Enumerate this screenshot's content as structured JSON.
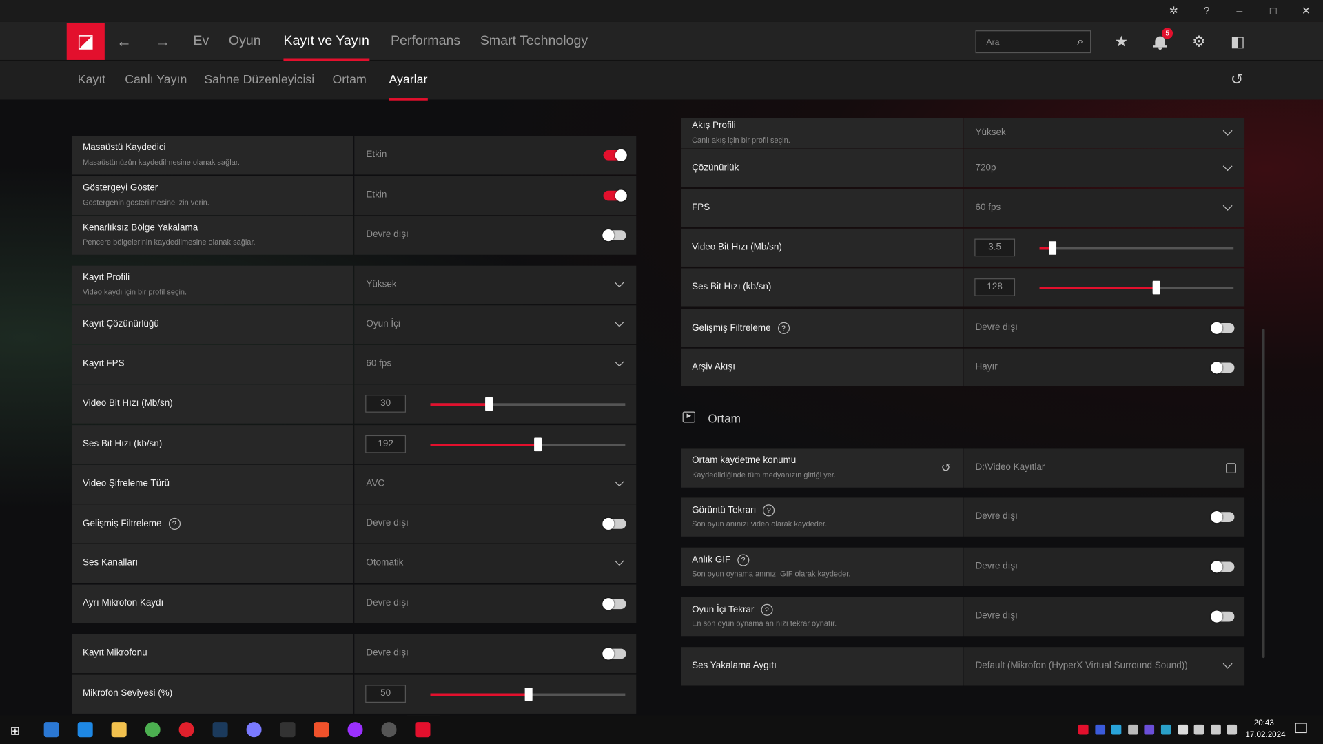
{
  "titlebar": {
    "icons": [
      "bug-report-icon",
      "help-icon",
      "minimize-icon",
      "maximize-icon",
      "close-icon"
    ]
  },
  "nav": {
    "back": "←",
    "forward": "→",
    "items": [
      {
        "label": "Ev"
      },
      {
        "label": "Oyun"
      },
      {
        "label": "Kayıt ve Yayın",
        "active": true
      },
      {
        "label": "Performans"
      },
      {
        "label": "Smart Technology"
      }
    ],
    "search_placeholder": "Ara",
    "notification_count": "5"
  },
  "subnav": {
    "items": [
      {
        "label": "Kayıt"
      },
      {
        "label": "Canlı Yayın"
      },
      {
        "label": "Sahne Düzenleyicisi"
      },
      {
        "label": "Ortam"
      },
      {
        "label": "Ayarlar",
        "active": true
      }
    ]
  },
  "left_panel": [
    {
      "label": "Masaüstü Kaydedici",
      "desc": "Masaüstünüzün kaydedilmesine olanak sağlar.",
      "type": "toggle",
      "value": "Etkin",
      "on": true
    },
    {
      "label": "Göstergeyi Göster",
      "desc": "Göstergenin gösterilmesine izin verin.",
      "type": "toggle",
      "value": "Etkin",
      "on": true
    },
    {
      "label": "Kenarlıksız Bölge Yakalama",
      "desc": "Pencere bölgelerinin kaydedilmesine olanak sağlar.",
      "type": "toggle",
      "value": "Devre dışı",
      "on": false
    },
    {
      "label": "Kayıt Profili",
      "desc": "Video kaydı için bir profil seçin.",
      "type": "dropdown",
      "value": "Yüksek"
    },
    {
      "label": "Kayıt Çözünürlüğü",
      "type": "dropdown",
      "value": "Oyun İçi"
    },
    {
      "label": "Kayıt FPS",
      "type": "dropdown",
      "value": "60 fps"
    },
    {
      "label": "Video Bit Hızı (Mb/sn)",
      "type": "slider",
      "value": "30",
      "fraction": 0.3
    },
    {
      "label": "Ses Bit Hızı (kb/sn)",
      "type": "slider",
      "value": "192",
      "fraction": 0.55
    },
    {
      "label": "Video Şifreleme Türü",
      "type": "dropdown",
      "value": "AVC"
    },
    {
      "label": "Gelişmiş Filtreleme",
      "help": true,
      "type": "toggle",
      "value": "Devre dışı",
      "on": false
    },
    {
      "label": "Ses Kanalları",
      "type": "dropdown",
      "value": "Otomatik"
    },
    {
      "label": "Ayrı Mikrofon Kaydı",
      "type": "toggle",
      "value": "Devre dışı",
      "on": false
    },
    {
      "label": "Kayıt Mikrofonu",
      "type": "toggle",
      "value": "Devre dışı",
      "on": false
    },
    {
      "label": "Mikrofon Seviyesi (%)",
      "type": "slider",
      "value": "50",
      "fraction": 0.5
    }
  ],
  "right_panel": [
    {
      "label": "Akış Profili",
      "desc": "Canlı akış için bir profil seçin.",
      "type": "dropdown",
      "value": "Yüksek"
    },
    {
      "label": "Çözünürlük",
      "type": "dropdown",
      "value": "720p"
    },
    {
      "label": "FPS",
      "type": "dropdown",
      "value": "60 fps"
    },
    {
      "label": "Video Bit Hızı (Mb/sn)",
      "type": "slider",
      "value": "3.5",
      "fraction": 0.065
    },
    {
      "label": "Ses Bit Hızı (kb/sn)",
      "type": "slider",
      "value": "128",
      "fraction": 0.6
    },
    {
      "label": "Gelişmiş Filtreleme",
      "help": true,
      "type": "toggle",
      "value": "Devre dışı",
      "on": false
    },
    {
      "label": "Arşiv Akışı",
      "type": "toggle",
      "value": "Hayır",
      "on": false
    }
  ],
  "media_section": {
    "title": "Ortam",
    "rows": [
      {
        "label": "Ortam kaydetme konumu",
        "desc": "Kaydedildiğinde tüm medyanızın gittiği yer.",
        "type": "path",
        "value": "D:\\Video Kayıtlar"
      },
      {
        "label": "Görüntü Tekrarı",
        "help": true,
        "desc": "Son oyun anınızı video olarak kaydeder.",
        "type": "toggle",
        "value": "Devre dışı",
        "on": false
      },
      {
        "label": "Anlık GIF",
        "help": true,
        "desc": "Son oyun oynama anınızı GIF olarak kaydeder.",
        "type": "toggle",
        "value": "Devre dışı",
        "on": false
      },
      {
        "label": "Oyun İçi Tekrar",
        "help": true,
        "desc": "En son oyun oynama anınızı tekrar oynatır.",
        "type": "toggle",
        "value": "Devre dışı",
        "on": false
      },
      {
        "label": "Ses Yakalama Aygıtı",
        "type": "dropdown",
        "value": "Default (Mikrofon (HyperX Virtual Surround Sound))"
      }
    ]
  },
  "taskbar": {
    "apps": [
      {
        "name": "store",
        "color": "#2b78d4"
      },
      {
        "name": "mail",
        "color": "#1e88e5"
      },
      {
        "name": "file-explorer",
        "color": "#f2c14e"
      },
      {
        "name": "chrome",
        "color": "#4caf50"
      },
      {
        "name": "opera",
        "color": "#e0202c"
      },
      {
        "name": "steam",
        "color": "#1b3a5c"
      },
      {
        "name": "ubisoft",
        "color": "#7a7aff"
      },
      {
        "name": "epic-games",
        "color": "#333333"
      },
      {
        "name": "ea",
        "color": "#f0522b"
      },
      {
        "name": "circle-app",
        "color": "#9b30ff"
      },
      {
        "name": "obs",
        "color": "#555555"
      },
      {
        "name": "amd-adrenalin",
        "color": "#e3102d"
      }
    ],
    "tray": [
      {
        "name": "amd",
        "color": "#e3102d"
      },
      {
        "name": "unigram",
        "color": "#3b5bdb"
      },
      {
        "name": "sync",
        "color": "#29a3d9"
      },
      {
        "name": "airplane",
        "color": "#bbbbbb"
      },
      {
        "name": "fps-monitor",
        "color": "#6b4fd8"
      },
      {
        "name": "hyperx",
        "color": "#2aa0c8"
      },
      {
        "name": "defender",
        "color": "#dddddd"
      },
      {
        "name": "network",
        "color": "#cccccc"
      },
      {
        "name": "volume",
        "color": "#cccccc"
      },
      {
        "name": "battery",
        "color": "#cccccc"
      }
    ],
    "time": "20:43",
    "date": "17.02.2024"
  },
  "colors": {
    "accent": "#e3102d",
    "panel": "#272727",
    "value_panel": "#232323"
  }
}
